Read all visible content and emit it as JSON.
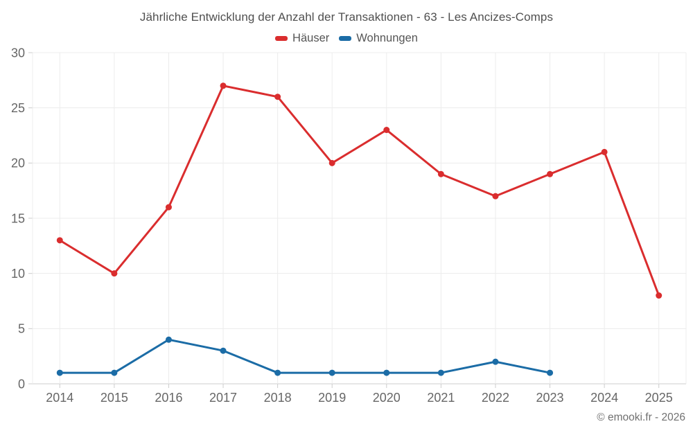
{
  "chart_data": {
    "type": "line",
    "title": "Jährliche Entwicklung der Anzahl der Transaktionen - 63 - Les Ancizes-Comps",
    "categories": [
      "2014",
      "2015",
      "2016",
      "2017",
      "2018",
      "2019",
      "2020",
      "2021",
      "2022",
      "2023",
      "2024",
      "2025"
    ],
    "series": [
      {
        "name": "Häuser",
        "color": "#da2d2e",
        "values": [
          13,
          10,
          16,
          27,
          26,
          20,
          23,
          19,
          17,
          19,
          21,
          8
        ]
      },
      {
        "name": "Wohnungen",
        "color": "#1b6ca6",
        "values": [
          1,
          1,
          4,
          3,
          1,
          1,
          1,
          1,
          2,
          1,
          null,
          null
        ]
      }
    ],
    "xlabel": "",
    "ylabel": "",
    "ylim": [
      0,
      30
    ],
    "y_ticks": [
      0,
      5,
      10,
      15,
      20,
      25,
      30
    ],
    "grid": true,
    "legend_position": "top"
  },
  "footer": {
    "text": "© emooki.fr - 2026"
  },
  "theme": {
    "grid_color": "#ececec",
    "axis_color": "#cccccc",
    "tick_label_color": "#666666",
    "title_color": "#4f4f4f",
    "marker_radius": 4.5,
    "line_width": 3
  }
}
